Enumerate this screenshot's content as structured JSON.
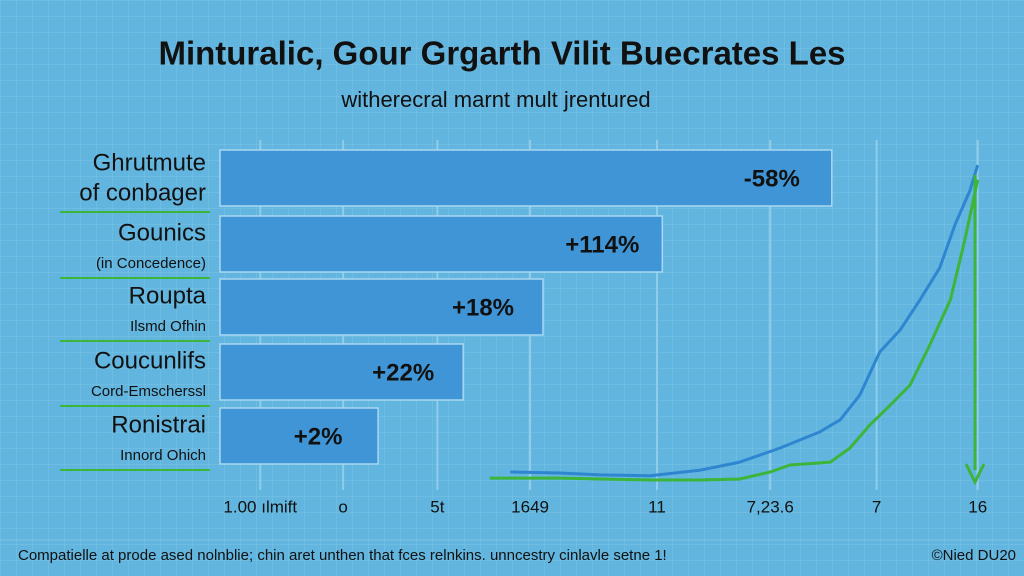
{
  "chart_data": {
    "type": "bar",
    "orientation": "horizontal",
    "title": "Minturalic, Gour Grgarth Vilit Buecrates Les",
    "subtitle": "witherecral marnt mult jrentured",
    "categories": [
      "Ghrutmute",
      "Gounics",
      "Roupta",
      "Coucunlifs",
      "Ronistrai"
    ],
    "sublabels": [
      "of conbager",
      "(in Concedence)",
      "Ilsmd Ofhin",
      "Cord-Emscherssl",
      "Innord Ohich"
    ],
    "values": [
      80.5,
      58.2,
      42.5,
      32,
      20.8
    ],
    "bar_labels": [
      "-58%",
      "+114%",
      "+18%",
      "+22%",
      "+2%"
    ],
    "color": "#3f95d6",
    "xlim": [
      0,
      100
    ],
    "xticks": [
      {
        "value": 5.3,
        "label": "1.00 ılmift"
      },
      {
        "value": 16.2,
        "label": "o"
      },
      {
        "value": 28.6,
        "label": "5t"
      },
      {
        "value": 40.8,
        "label": "1649"
      },
      {
        "value": 57.5,
        "label": "11"
      },
      {
        "value": 72.4,
        "label": "7,23.6"
      },
      {
        "value": 86.4,
        "label": "7"
      },
      {
        "value": 99.7,
        "label": "16"
      }
    ],
    "ylim": [
      0,
      100
    ],
    "grid": true,
    "lines": [
      {
        "color": "#2f86d0",
        "x": [
          38.2,
          44.7,
          50,
          56.6,
          63.2,
          68.4,
          73.7,
          78.9,
          81.6,
          84.2,
          86.8,
          89.5,
          92.1,
          94.7,
          96.7,
          98.7,
          99.7
        ],
        "values": [
          2.5,
          2.2,
          1.6,
          1.3,
          3.1,
          5.6,
          10,
          15,
          18.8,
          26.6,
          40,
          46.9,
          56.3,
          66.3,
          79.7,
          90.6,
          98.4
        ]
      },
      {
        "color": "#3db43a",
        "x": [
          35.5,
          44.7,
          56.6,
          63.2,
          68.4,
          72.4,
          75,
          80.3,
          82.9,
          85.5,
          88.2,
          90.8,
          93.4,
          96.1,
          98,
          99.7
        ],
        "values": [
          0.6,
          0.6,
          0,
          0,
          0.3,
          2.5,
          4.7,
          5.6,
          10,
          17.2,
          23.4,
          29.7,
          42.2,
          56.3,
          75,
          93.8
        ]
      }
    ],
    "footer": "Compatielle at prode ased nolnblie; chin aret unthen that fces relnkins. unncestry cinlavle setne 1!",
    "credit": "©Nied DU20"
  }
}
